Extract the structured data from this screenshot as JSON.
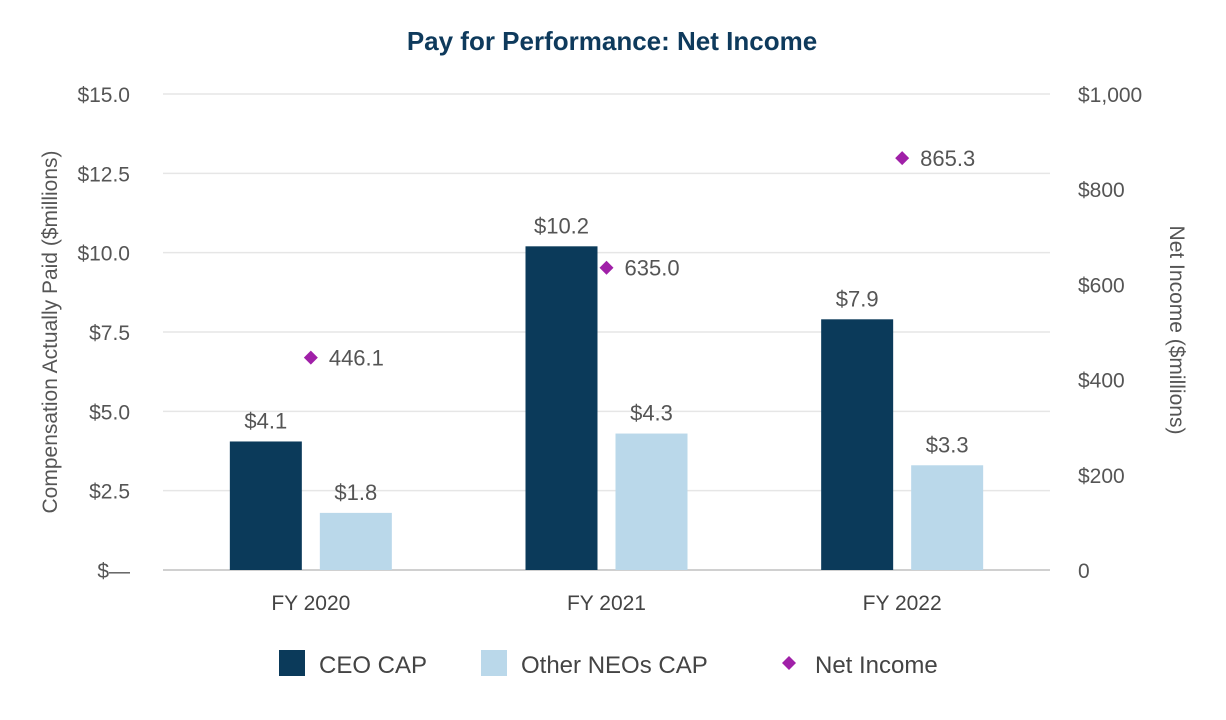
{
  "chart_data": {
    "type": "bar",
    "title": "Pay for Performance: Net Income",
    "categories": [
      "FY 2020",
      "FY 2021",
      "FY 2022"
    ],
    "ylabel": "Compensation Actually Paid ($millions)",
    "y2label": "Net Income ($millions)",
    "ylim": [
      0,
      15
    ],
    "y2lim": [
      0,
      1000
    ],
    "y_ticks": [
      "$—",
      "$2.5",
      "$5.0",
      "$7.5",
      "$10.0",
      "$12.5",
      "$15.0"
    ],
    "y2_ticks": [
      "0",
      "$200",
      "$400",
      "$600",
      "$800",
      "$1,000"
    ],
    "grid": true,
    "legend_position": "bottom",
    "series": [
      {
        "name": "CEO CAP",
        "kind": "bar",
        "axis": "left",
        "color": "#0b3a5a",
        "values": [
          4.05,
          10.2,
          7.9
        ],
        "labels": [
          "$4.1",
          "$10.2",
          "$7.9"
        ]
      },
      {
        "name": "Other NEOs CAP",
        "kind": "bar",
        "axis": "left",
        "color": "#bad8ea",
        "values": [
          1.8,
          4.3,
          3.3
        ],
        "labels": [
          "$1.8",
          "$4.3",
          "$3.3"
        ]
      },
      {
        "name": "Net Income",
        "kind": "marker",
        "marker": "diamond",
        "axis": "right",
        "color": "#a020a8",
        "values": [
          446.1,
          635.0,
          865.3
        ],
        "labels": [
          "446.1",
          "635.0",
          "865.3"
        ]
      }
    ]
  }
}
